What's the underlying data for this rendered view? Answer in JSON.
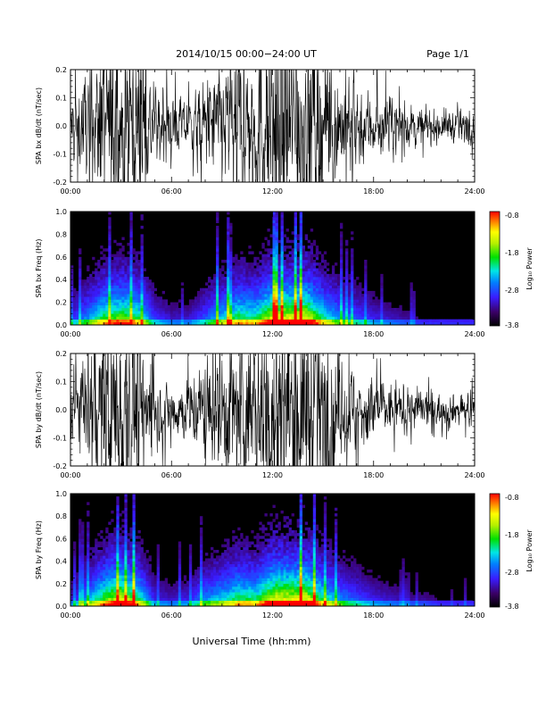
{
  "header": {
    "title": "2014/10/15   00:00−24:00 UT",
    "page_label": "Page 1/1"
  },
  "xlabel": "Universal Time (hh:mm)",
  "colorbar": {
    "label": "Log₁₀ Power",
    "ticks": [
      "-0.8",
      "-1.8",
      "-2.8",
      "-3.8"
    ]
  },
  "chart_data": [
    {
      "type": "line",
      "panel": "bx-waveform",
      "ylabel": "SPA bx dB/dt (nT/sec)",
      "ylim": [
        -0.2,
        0.2
      ],
      "xlim": [
        "00:00",
        "24:00"
      ],
      "xticks": [
        "00:00",
        "06:00",
        "12:00",
        "18:00",
        "24:00"
      ],
      "yticks": [
        "0.2",
        "0.1",
        "0.0",
        "-0.1",
        "-0.2"
      ],
      "x": [
        "00:00",
        "01:00",
        "02:00",
        "03:00",
        "04:00",
        "05:00",
        "06:00",
        "07:00",
        "08:00",
        "09:00",
        "10:00",
        "11:00",
        "12:00",
        "13:00",
        "14:00",
        "15:00",
        "16:00",
        "17:00",
        "18:00",
        "19:00",
        "20:00",
        "21:00",
        "22:00",
        "23:00",
        "24:00"
      ],
      "envelope": [
        0.06,
        0.1,
        0.15,
        0.17,
        0.15,
        0.07,
        0.05,
        0.05,
        0.08,
        0.12,
        0.15,
        0.14,
        0.2,
        0.2,
        0.2,
        0.14,
        0.1,
        0.08,
        0.06,
        0.05,
        0.04,
        0.03,
        0.03,
        0.03,
        0.03
      ]
    },
    {
      "type": "heatmap",
      "panel": "bx-spectrogram",
      "ylabel": "SPA bx Freq (Hz)",
      "ylim": [
        0.0,
        1.0
      ],
      "xlim": [
        "00:00",
        "24:00"
      ],
      "xticks": [
        "00:00",
        "06:00",
        "12:00",
        "18:00",
        "24:00"
      ],
      "yticks": [
        "1.0",
        "0.8",
        "0.6",
        "0.4",
        "0.2",
        "0.0"
      ],
      "zlim": [
        -3.8,
        -0.8
      ]
    },
    {
      "type": "line",
      "panel": "by-waveform",
      "ylabel": "SPA by dB/dt (nT/sec)",
      "ylim": [
        -0.2,
        0.2
      ],
      "xlim": [
        "00:00",
        "24:00"
      ],
      "xticks": [
        "00:00",
        "06:00",
        "12:00",
        "18:00",
        "24:00"
      ],
      "yticks": [
        "0.2",
        "0.1",
        "0.0",
        "-0.1",
        "-0.2"
      ],
      "x": [
        "00:00",
        "01:00",
        "02:00",
        "03:00",
        "04:00",
        "05:00",
        "06:00",
        "07:00",
        "08:00",
        "09:00",
        "10:00",
        "11:00",
        "12:00",
        "13:00",
        "14:00",
        "15:00",
        "16:00",
        "17:00",
        "18:00",
        "19:00",
        "20:00",
        "21:00",
        "22:00",
        "23:00",
        "24:00"
      ],
      "envelope": [
        0.05,
        0.1,
        0.16,
        0.2,
        0.15,
        0.06,
        0.05,
        0.06,
        0.1,
        0.12,
        0.15,
        0.14,
        0.2,
        0.2,
        0.2,
        0.14,
        0.1,
        0.08,
        0.06,
        0.05,
        0.04,
        0.04,
        0.03,
        0.03,
        0.03
      ]
    },
    {
      "type": "heatmap",
      "panel": "by-spectrogram",
      "ylabel": "SPA by Freq (Hz)",
      "ylim": [
        0.0,
        1.0
      ],
      "xlim": [
        "00:00",
        "24:00"
      ],
      "xticks": [
        "00:00",
        "06:00",
        "12:00",
        "18:00",
        "24:00"
      ],
      "yticks": [
        "1.0",
        "0.8",
        "0.6",
        "0.4",
        "0.2",
        "0.0"
      ],
      "zlim": [
        -3.8,
        -0.8
      ]
    }
  ]
}
